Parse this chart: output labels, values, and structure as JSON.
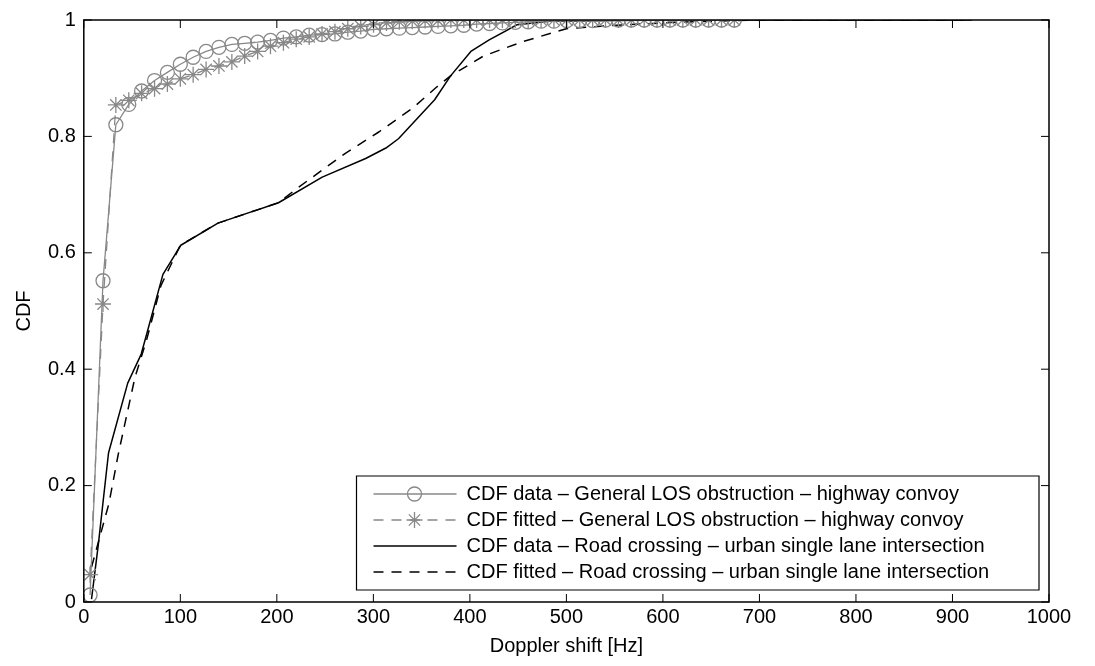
{
  "chart_data": {
    "type": "line",
    "xlabel": "Doppler shift [Hz]",
    "ylabel": "CDF",
    "xlim": [
      0,
      1000
    ],
    "xticks": [
      0,
      100,
      200,
      300,
      400,
      500,
      600,
      700,
      800,
      900,
      1000
    ],
    "ylim": [
      0,
      1
    ],
    "yticks": [
      0,
      0.2,
      0.4,
      0.6,
      0.8,
      1
    ],
    "grid": false,
    "legend": "bottom right",
    "series": [
      {
        "name": "CDF data – General LOS obstruction – highway convoy",
        "color": "#888888",
        "marker": "circle",
        "line_style": "solid",
        "x": [
          6.5,
          19.9,
          33.2,
          46.6,
          59.9,
          73.3,
          86.6,
          100,
          113.3,
          126.7,
          140,
          153.4,
          166.7,
          180.1,
          193.4,
          206.8,
          220.1,
          233.5,
          246.8,
          260.2,
          273.5,
          286.9,
          300.2,
          313.6,
          326.9,
          340.3,
          353.6,
          367,
          380.3,
          393.7,
          407,
          420.4,
          433.7,
          447.1,
          460.4,
          473.8,
          487.1,
          500.5,
          513.8,
          527.2,
          540.5,
          553.9,
          567.2,
          580.6,
          593.9,
          607.3,
          620.6,
          634,
          647.3,
          660.7,
          674
        ],
        "values": [
          0.012,
          0.552,
          0.82,
          0.855,
          0.878,
          0.896,
          0.91,
          0.924,
          0.936,
          0.946,
          0.953,
          0.958,
          0.96,
          0.962,
          0.965,
          0.969,
          0.971,
          0.974,
          0.975,
          0.976,
          0.979,
          0.981,
          0.984,
          0.985,
          0.986,
          0.987,
          0.988,
          0.989,
          0.99,
          0.991,
          0.993,
          0.994,
          0.995,
          0.996,
          0.997,
          0.998,
          0.998,
          0.999,
          0.999,
          0.999,
          1,
          1,
          1,
          1,
          1,
          1,
          1,
          1,
          1,
          1,
          1
        ]
      },
      {
        "name": "CDF fitted – General LOS obstruction – highway convoy",
        "color": "#888888",
        "marker": "cross",
        "line_style": "dashed",
        "x": [
          6.5,
          19.9,
          33.2,
          46.6,
          59.9,
          73.3,
          86.6,
          100,
          113.3,
          126.7,
          140,
          153.4,
          166.7,
          180.1,
          193.4,
          206.8,
          220.1,
          233.5,
          246.8,
          260.2,
          273.5,
          286.9,
          300.2,
          313.6,
          326.9,
          340.3,
          353.6,
          367,
          380.3,
          393.7,
          407,
          420.4,
          433.7,
          447.1,
          460.4,
          473.8,
          487.1,
          500.5,
          513.8,
          527.2,
          540.5,
          553.9,
          567.2,
          580.6,
          593.9,
          607.3,
          620.6,
          634,
          647.3,
          660.7,
          674
        ],
        "values": [
          0.047,
          0.512,
          0.854,
          0.862,
          0.874,
          0.882,
          0.89,
          0.899,
          0.906,
          0.915,
          0.921,
          0.928,
          0.938,
          0.946,
          0.955,
          0.961,
          0.967,
          0.971,
          0.976,
          0.98,
          0.985,
          0.989,
          0.992,
          0.995,
          0.997,
          0.998,
          0.999,
          0.999,
          1,
          1,
          1,
          1,
          1,
          1,
          1,
          1,
          1,
          1,
          1,
          1,
          1,
          1,
          1,
          1,
          1,
          1,
          1,
          1,
          1,
          1,
          1
        ]
      },
      {
        "name": "CDF data – Road crossing – urban single lane intersection",
        "color": "#000000",
        "marker": "none",
        "line_style": "solid",
        "x": [
          8,
          15,
          25.6,
          45.5,
          59.5,
          82,
          100.5,
          139,
          201.7,
          247,
          292,
          313,
          326,
          363.5,
          380,
          401,
          420,
          449,
          482,
          600,
          920
        ],
        "values": [
          0.005,
          0.098,
          0.256,
          0.376,
          0.426,
          0.563,
          0.613,
          0.651,
          0.686,
          0.73,
          0.762,
          0.78,
          0.796,
          0.863,
          0.904,
          0.946,
          0.966,
          0.992,
          0.998,
          1,
          1
        ]
      },
      {
        "name": "CDF fitted – Road crossing – urban single lane intersection",
        "color": "#000000",
        "marker": "none",
        "line_style": "dashed",
        "x": [
          8,
          26,
          35.6,
          53,
          65,
          80,
          100,
          139,
          201.7,
          222,
          271,
          306,
          341,
          365,
          380,
          414,
          455,
          500,
          552,
          612,
          700,
          920
        ],
        "values": [
          0.06,
          0.169,
          0.253,
          0.386,
          0.45,
          0.544,
          0.613,
          0.651,
          0.686,
          0.712,
          0.771,
          0.808,
          0.849,
          0.884,
          0.904,
          0.938,
          0.963,
          0.985,
          0.991,
          0.996,
          1,
          1
        ]
      }
    ]
  }
}
